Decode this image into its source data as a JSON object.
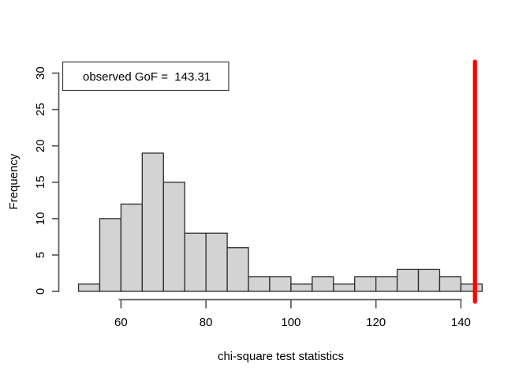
{
  "chart_data": {
    "type": "bar",
    "subtype": "histogram",
    "title": "",
    "xlabel": "chi-square test statistics",
    "ylabel": "Frequency",
    "bin_edges": [
      50,
      55,
      60,
      65,
      70,
      75,
      80,
      85,
      90,
      95,
      100,
      105,
      110,
      115,
      120,
      125,
      130,
      135,
      140,
      145
    ],
    "frequencies": [
      1,
      10,
      12,
      19,
      15,
      8,
      8,
      6,
      2,
      2,
      1,
      2,
      1,
      2,
      2,
      3,
      3,
      2,
      1
    ],
    "x_ticks": [
      60,
      80,
      100,
      120,
      140
    ],
    "y_ticks": [
      0,
      5,
      10,
      15,
      20,
      25,
      30
    ],
    "xlim": [
      50,
      145
    ],
    "ylim": [
      0,
      30
    ],
    "grid": "off",
    "legend": {
      "position": "topleft",
      "label": "observed GoF =  143.31"
    },
    "observed_line": {
      "value": 143.31,
      "color": "#fe0000",
      "width": 5.2
    },
    "colors": {
      "bar_fill": "#d3d3d3",
      "bar_stroke": "#2b2b2b",
      "axis": "#5a5a5a",
      "legend_border": "#3c3c3c",
      "legend_fill": "#ffffff",
      "text": "#000000",
      "background": "#ffffff"
    }
  }
}
